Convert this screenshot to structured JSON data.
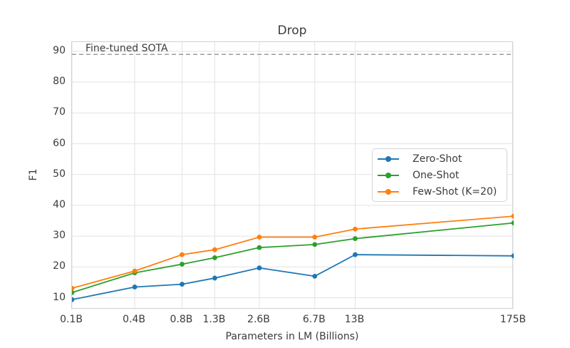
{
  "chart_data": {
    "type": "line",
    "title": "Drop",
    "xlabel": "Parameters in LM (Billions)",
    "ylabel": "F1",
    "x_scale": "log",
    "categories": [
      "0.1B",
      "0.4B",
      "0.8B",
      "1.3B",
      "2.6B",
      "6.7B",
      "13B",
      "175B"
    ],
    "x": [
      0.125,
      0.35,
      0.76,
      1.3,
      2.7,
      6.7,
      13,
      175
    ],
    "series": [
      {
        "name": "Zero-Shot",
        "color": "#1f77b4",
        "values": [
          9.4,
          13.5,
          14.4,
          16.4,
          19.7,
          17.0,
          24.0,
          23.6
        ]
      },
      {
        "name": "One-Shot",
        "color": "#2ca02c",
        "values": [
          11.7,
          18.1,
          20.9,
          23.0,
          26.3,
          27.3,
          29.2,
          34.3
        ]
      },
      {
        "name": "Few-Shot (K=20)",
        "color": "#ff7f0e",
        "values": [
          13.1,
          18.7,
          24.0,
          25.6,
          29.7,
          29.7,
          32.3,
          36.5
        ]
      }
    ],
    "reference_line": {
      "label": "Fine-tuned SOTA",
      "value": 89,
      "color": "#8a8a8a",
      "style": "dashed"
    },
    "yticks": [
      10,
      20,
      30,
      40,
      50,
      60,
      70,
      80,
      90
    ],
    "ylim": [
      6.2,
      93.0
    ],
    "grid": true,
    "legend_position": "center-right"
  },
  "colors": {
    "grid": "#e3e3e3",
    "spine": "#d0d0d0",
    "text": "#3b3b3b",
    "background": "#ffffff"
  }
}
